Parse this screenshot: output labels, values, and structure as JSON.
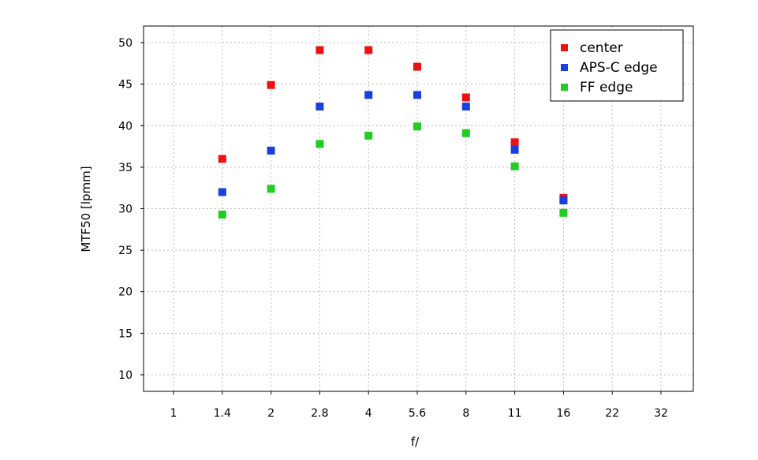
{
  "chart_data": {
    "type": "scatter",
    "title": "",
    "xlabel": "f/",
    "ylabel": "MTF50 [lpmm]",
    "x_scale": "log",
    "x_categories": [
      "1",
      "1.4",
      "2",
      "2.8",
      "4",
      "5.6",
      "8",
      "11",
      "16",
      "22",
      "32"
    ],
    "ylim": [
      8,
      52
    ],
    "yticks": [
      10,
      15,
      20,
      25,
      30,
      35,
      40,
      45,
      50
    ],
    "grid": true,
    "legend_position": "top-right",
    "series": [
      {
        "name": "center",
        "color": "#ee1111",
        "points": [
          {
            "x": "1.4",
            "y": 36.0
          },
          {
            "x": "2",
            "y": 44.9
          },
          {
            "x": "2.8",
            "y": 49.1
          },
          {
            "x": "4",
            "y": 49.1
          },
          {
            "x": "5.6",
            "y": 47.1
          },
          {
            "x": "8",
            "y": 43.4
          },
          {
            "x": "11",
            "y": 38.0
          },
          {
            "x": "16",
            "y": 31.3
          }
        ]
      },
      {
        "name": "APS-C edge",
        "color": "#1a3fe0",
        "points": [
          {
            "x": "1.4",
            "y": 32.0
          },
          {
            "x": "2",
            "y": 37.0
          },
          {
            "x": "2.8",
            "y": 42.3
          },
          {
            "x": "4",
            "y": 43.7
          },
          {
            "x": "5.6",
            "y": 43.7
          },
          {
            "x": "8",
            "y": 42.3
          },
          {
            "x": "11",
            "y": 37.1
          },
          {
            "x": "16",
            "y": 31.0
          }
        ]
      },
      {
        "name": "FF edge",
        "color": "#22cc22",
        "points": [
          {
            "x": "1.4",
            "y": 29.3
          },
          {
            "x": "2",
            "y": 32.4
          },
          {
            "x": "2.8",
            "y": 37.8
          },
          {
            "x": "4",
            "y": 38.8
          },
          {
            "x": "5.6",
            "y": 39.9
          },
          {
            "x": "8",
            "y": 39.1
          },
          {
            "x": "11",
            "y": 35.1
          },
          {
            "x": "16",
            "y": 29.5
          }
        ]
      }
    ]
  }
}
